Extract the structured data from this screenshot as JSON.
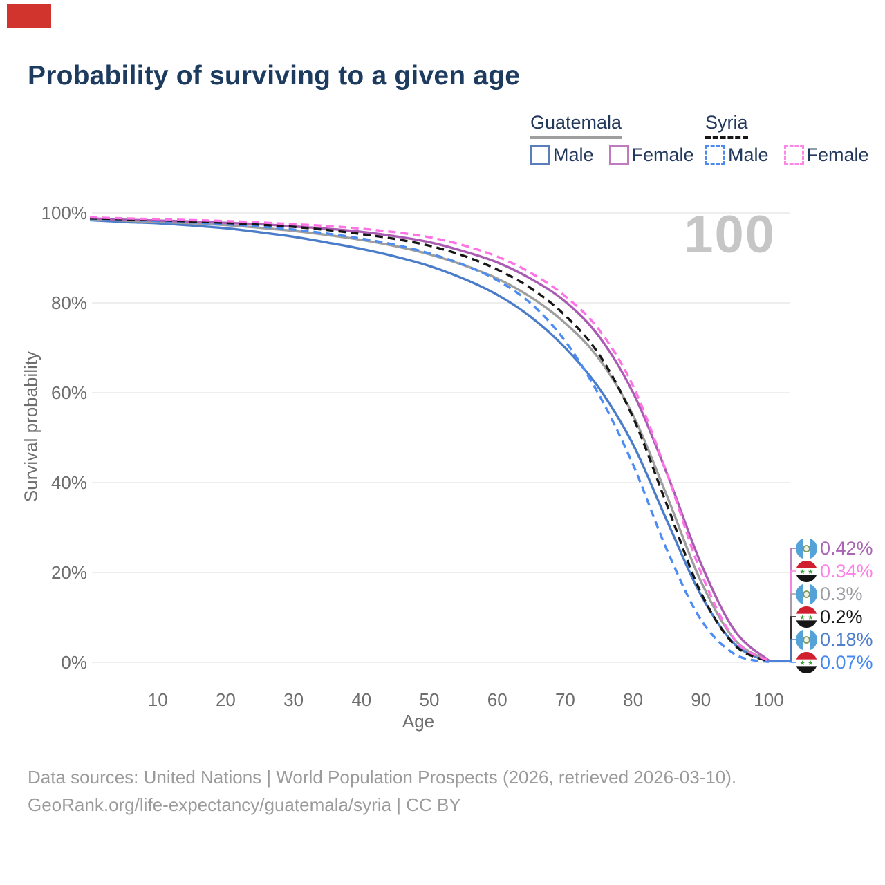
{
  "colors": {
    "title": "#1d3a5f",
    "text": "#22395c",
    "marker": "#d0342c",
    "watermark": "#c6c6c6",
    "axis": "#6e6e6e",
    "footer": "#9b9b9b",
    "gridline": "#e9e9e9"
  },
  "title": {
    "text": "Probability of surviving to a given age"
  },
  "legend": {
    "groups": [
      {
        "name": "Guatemala",
        "line_style": "solid",
        "line_color": "#9e9e9e",
        "items": [
          {
            "label": "Male",
            "box_color": "#5b7ebb",
            "box_style": "solid"
          },
          {
            "label": "Female",
            "box_color": "#c07bbe",
            "box_style": "solid"
          }
        ]
      },
      {
        "name": "Syria",
        "line_style": "dashed",
        "line_color": "#161616",
        "items": [
          {
            "label": "Male",
            "box_color": "#4d8af0",
            "box_style": "dashed"
          },
          {
            "label": "Female",
            "box_color": "#ff85e8",
            "box_style": "dashed"
          }
        ]
      }
    ]
  },
  "chart_data": {
    "type": "line",
    "title": "Probability of surviving to a given age",
    "xlabel": "Age",
    "ylabel": "Survival probability",
    "xlim": [
      0,
      100
    ],
    "ylim": [
      0,
      100
    ],
    "x_ticks": [
      10,
      20,
      30,
      40,
      50,
      60,
      70,
      80,
      90,
      100
    ],
    "y_ticks": [
      0,
      20,
      40,
      60,
      80,
      100
    ],
    "y_tick_suffix": "%",
    "grid": "horizontal",
    "legend_position": "top-right",
    "watermark": "100",
    "x": [
      0,
      5,
      10,
      15,
      20,
      25,
      30,
      35,
      40,
      45,
      50,
      55,
      60,
      65,
      70,
      75,
      80,
      85,
      90,
      95,
      100
    ],
    "series": [
      {
        "id": "guatemala-male",
        "name": "Guatemala Male",
        "color": "#4a7cc9",
        "dash": "solid",
        "values": [
          98.4,
          98.0,
          97.7,
          97.2,
          96.6,
          95.7,
          94.7,
          93.4,
          92.0,
          90.3,
          88.2,
          85.4,
          81.8,
          76.8,
          70.0,
          61.0,
          48.5,
          31.5,
          15.0,
          4.0,
          0.18
        ]
      },
      {
        "id": "guatemala-all",
        "name": "Guatemala",
        "color": "#9e9e9e",
        "dash": "solid",
        "values": [
          98.6,
          98.3,
          98.0,
          97.7,
          97.3,
          96.7,
          96.0,
          95.1,
          94.0,
          92.6,
          90.8,
          88.4,
          85.4,
          81.2,
          75.5,
          67.5,
          55.0,
          37.0,
          18.0,
          5.0,
          0.3
        ]
      },
      {
        "id": "guatemala-female",
        "name": "Guatemala Female",
        "color": "#aa5cb2",
        "dash": "solid",
        "values": [
          98.8,
          98.5,
          98.3,
          98.1,
          97.8,
          97.5,
          97.0,
          96.5,
          95.8,
          94.8,
          93.5,
          91.5,
          89.0,
          85.3,
          80.3,
          72.5,
          60.0,
          42.0,
          22.0,
          7.0,
          0.42
        ]
      },
      {
        "id": "syria-male",
        "name": "Syria Male",
        "color": "#4d8cf2",
        "dash": "dashed",
        "values": [
          98.7,
          98.5,
          98.2,
          97.9,
          97.5,
          97.0,
          96.3,
          95.4,
          94.3,
          92.9,
          91.0,
          88.5,
          85.0,
          79.8,
          71.5,
          59.5,
          44.0,
          25.0,
          9.5,
          1.8,
          0.07
        ]
      },
      {
        "id": "syria-all",
        "name": "Syria",
        "color": "#161616",
        "dash": "dashed",
        "values": [
          98.8,
          98.6,
          98.4,
          98.1,
          97.8,
          97.4,
          96.9,
          96.2,
          95.3,
          94.2,
          92.7,
          90.5,
          87.4,
          83.2,
          77.2,
          68.5,
          54.5,
          35.0,
          15.5,
          3.8,
          0.2
        ]
      },
      {
        "id": "syria-female",
        "name": "Syria Female",
        "color": "#ff72e6",
        "dash": "dashed",
        "values": [
          99.0,
          98.8,
          98.6,
          98.4,
          98.2,
          97.9,
          97.5,
          97.1,
          96.5,
          95.7,
          94.6,
          92.8,
          90.3,
          86.6,
          81.5,
          74.0,
          61.5,
          42.0,
          20.0,
          5.0,
          0.34
        ]
      }
    ],
    "end_labels": [
      {
        "series_id": "guatemala-female",
        "value": "0.42%",
        "color": "#a964b4",
        "flag": "guatemala"
      },
      {
        "series_id": "syria-female",
        "value": "0.34%",
        "color": "#ff80e5",
        "flag": "syria"
      },
      {
        "series_id": "guatemala-all",
        "value": "0.3%",
        "color": "#9d9da1",
        "flag": "guatemala"
      },
      {
        "series_id": "syria-all",
        "value": "0.2%",
        "color": "#161616",
        "flag": "syria"
      },
      {
        "series_id": "guatemala-male",
        "value": "0.18%",
        "color": "#4f7ecb",
        "flag": "guatemala"
      },
      {
        "series_id": "syria-male",
        "value": "0.07%",
        "color": "#4589f2",
        "flag": "syria"
      }
    ],
    "flag_colors": {
      "guatemala": {
        "band": "#54a3d8",
        "middle": "#ffffff",
        "emblem": "#7d9c5b"
      },
      "syria": {
        "top": "#d02030",
        "middle": "#ffffff",
        "bottom": "#151515",
        "stars": "#3a9e3f"
      }
    }
  },
  "footer": {
    "line1": "Data sources: United Nations | World Population Prospects (2026, retrieved 2026-03-10).",
    "line2": "GeoRank.org/life-expectancy/guatemala/syria | CC BY"
  }
}
